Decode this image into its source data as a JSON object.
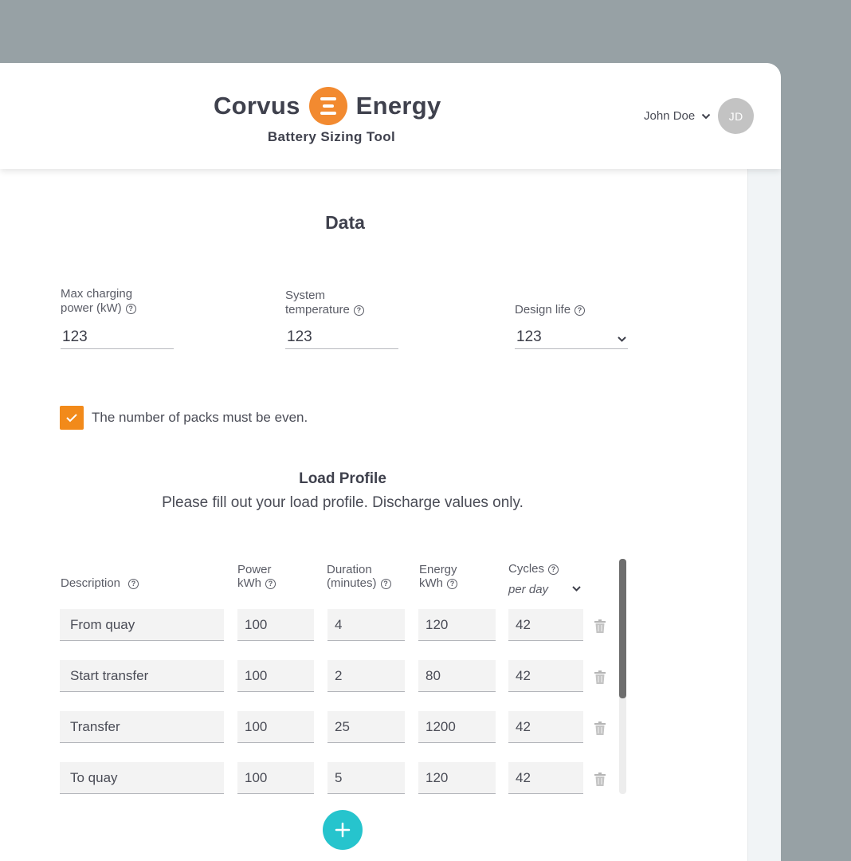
{
  "header": {
    "logo_left": "Corvus",
    "logo_right": "Energy",
    "subtitle": "Battery Sizing Tool",
    "user_name": "John Doe",
    "user_initials": "JD"
  },
  "data_section": {
    "title": "Data",
    "fields": [
      {
        "label_line1": "Max charging",
        "label_line2": "power (kW)",
        "value": "123"
      },
      {
        "label_line1": "System",
        "label_line2": "temperature",
        "value": "123"
      },
      {
        "label_line1": "",
        "label_line2": "Design life",
        "value": "123"
      }
    ],
    "checkbox_label": "The number of packs must be even.",
    "checkbox_checked": true
  },
  "load_profile": {
    "title": "Load Profile",
    "description": "Please fill out your load profile. Discharge values only.",
    "columns": {
      "description": "Description",
      "power_line1": "Power",
      "power_line2": "kWh",
      "duration_line1": "Duration",
      "duration_line2": "(minutes)",
      "energy_line1": "Energy",
      "energy_line2": "kWh",
      "cycles_line1": "Cycles",
      "cycles_unit": "per day"
    },
    "rows": [
      {
        "description": "From quay",
        "power": "100",
        "duration": "4",
        "energy": "120",
        "cycles": "42"
      },
      {
        "description": "Start transfer",
        "power": "100",
        "duration": "2",
        "energy": "80",
        "cycles": "42"
      },
      {
        "description": "Transfer",
        "power": "100",
        "duration": "25",
        "energy": "1200",
        "cycles": "42"
      },
      {
        "description": "To quay",
        "power": "100",
        "duration": "5",
        "energy": "120",
        "cycles": "42"
      }
    ]
  },
  "colors": {
    "accent": "#f28a30",
    "add_button": "#26c4cd",
    "background": "#97a1a5"
  },
  "icons": [
    "logo-mark-icon",
    "chevron-down-icon",
    "help-icon",
    "check-icon",
    "trash-icon",
    "plus-icon"
  ]
}
